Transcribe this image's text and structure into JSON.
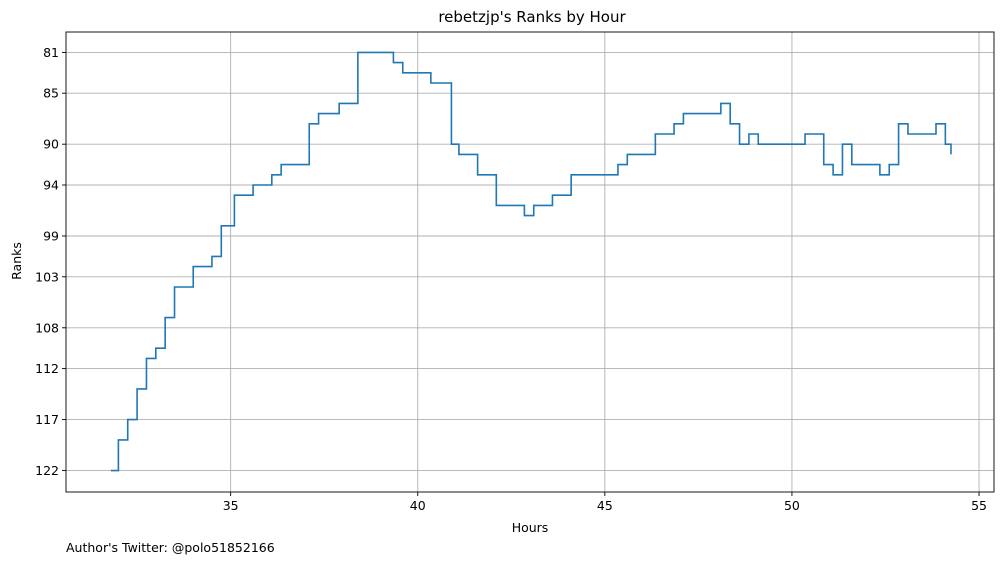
{
  "chart_data": {
    "type": "line",
    "title": "rebetzjp's Ranks by Hour",
    "xlabel": "Hours",
    "ylabel": "Ranks",
    "footnote": "Author's Twitter: @polo51852166",
    "grid": true,
    "y_inverted": true,
    "step": "post",
    "xlim": [
      30.6,
      55.4
    ],
    "ylim": [
      79.0,
      124.1
    ],
    "x_ticks": [
      35,
      40,
      45,
      50,
      55
    ],
    "y_ticks": [
      81,
      85,
      90,
      94,
      99,
      103,
      108,
      112,
      117,
      122
    ],
    "line_color": "#1f77b4",
    "series": [
      {
        "x": [
          31.8,
          32.0,
          32.25,
          32.5,
          32.75,
          33.0,
          33.25,
          33.5,
          34.0,
          34.5,
          34.75,
          35.1,
          35.6,
          36.1,
          36.35,
          37.1,
          37.35,
          37.9,
          38.4,
          39.35,
          39.6,
          40.35,
          40.9,
          41.1,
          41.6,
          42.1,
          42.85,
          43.1,
          43.6,
          44.1,
          45.35,
          45.6,
          46.35,
          46.85,
          47.1,
          48.1,
          48.35,
          48.6,
          48.85,
          49.1,
          50.35,
          50.85,
          51.1,
          51.35,
          51.6,
          52.35,
          52.6,
          52.85,
          53.1,
          53.85,
          54.1,
          54.25
        ],
        "y": [
          122,
          119,
          117,
          114,
          111,
          110,
          107,
          104,
          102,
          101,
          98,
          95,
          94,
          93,
          92,
          88,
          87,
          86,
          81,
          82,
          83,
          84,
          90,
          91,
          93,
          96,
          97,
          96,
          95,
          93,
          92,
          91,
          89,
          88,
          87,
          86,
          88,
          90,
          89,
          90,
          89,
          92,
          93,
          90,
          92,
          93,
          92,
          88,
          89,
          88,
          90,
          91
        ]
      }
    ]
  }
}
